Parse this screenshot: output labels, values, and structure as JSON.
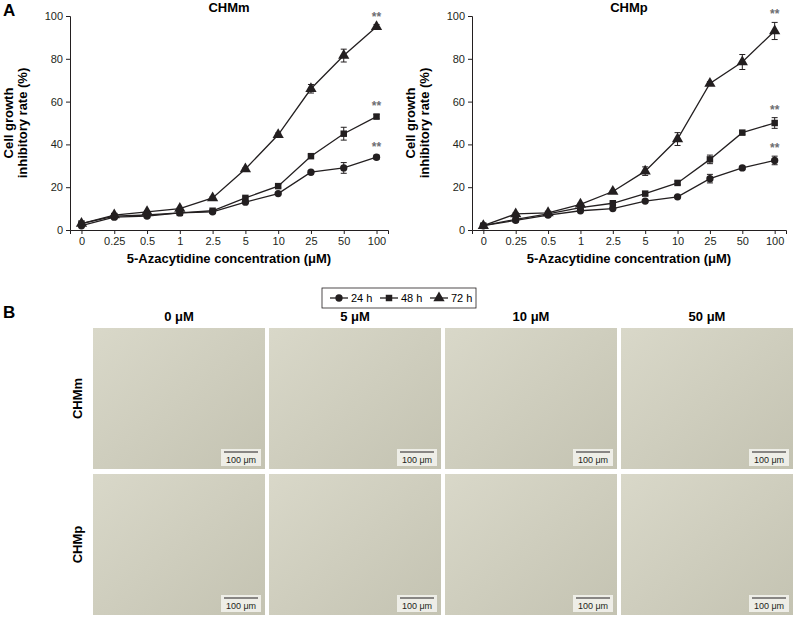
{
  "chart_data": [
    {
      "type": "line",
      "title": "CHMm",
      "x_label": "5-Azacytidine concentration (μM)",
      "y_label": "Cell growth\ninhibitory rate (%)",
      "categories": [
        "0",
        "0.25",
        "0.5",
        "1",
        "2.5",
        "5",
        "10",
        "25",
        "50",
        "100"
      ],
      "ylim": [
        0,
        100
      ],
      "yticks": [
        0,
        20,
        40,
        60,
        80,
        100
      ],
      "series": [
        {
          "name": "24 h",
          "color": "#231f20",
          "marker": "circle",
          "line_style": "solid",
          "values": [
            2,
            6,
            6.5,
            8,
            8.5,
            13,
            17,
            27,
            29,
            34
          ],
          "errors": [
            0.5,
            0.5,
            0.5,
            0.5,
            0.5,
            0.5,
            0.5,
            0.8,
            2.5,
            1
          ]
        },
        {
          "name": "48 h",
          "color": "#231f20",
          "marker": "square",
          "line_style": "solid",
          "values": [
            3,
            6.5,
            7,
            8,
            9,
            15,
            20.5,
            34.5,
            45,
            53
          ],
          "errors": [
            0.5,
            0.5,
            0.5,
            0.5,
            0.5,
            0.5,
            0.8,
            0.8,
            3,
            1
          ]
        },
        {
          "name": "72 h",
          "color": "#231f20",
          "marker": "triangle",
          "line_style": "solid",
          "values": [
            3,
            7,
            8.5,
            10,
            15,
            28.5,
            44.5,
            66,
            81.5,
            95
          ],
          "errors": [
            0.5,
            0.5,
            0.5,
            0.5,
            0.5,
            0.5,
            0.8,
            2,
            3,
            1
          ]
        }
      ],
      "annotations": [
        {
          "text": "**",
          "x": "100",
          "series": "24 h"
        },
        {
          "text": "**",
          "x": "100",
          "series": "48 h"
        },
        {
          "text": "**",
          "x": "100",
          "series": "72 h"
        }
      ]
    },
    {
      "type": "line",
      "title": "CHMp",
      "x_label": "5-Azacytidine concentration (μM)",
      "y_label": "Cell growth\ninhibitory rate (%)",
      "categories": [
        "0",
        "0.25",
        "0.5",
        "1",
        "2.5",
        "5",
        "10",
        "25",
        "50",
        "100"
      ],
      "ylim": [
        0,
        100
      ],
      "yticks": [
        0,
        20,
        40,
        60,
        80,
        100
      ],
      "series": [
        {
          "name": "24 h",
          "color": "#231f20",
          "marker": "circle",
          "line_style": "solid",
          "values": [
            2,
            4.5,
            7,
            9,
            10,
            13.5,
            15.5,
            24,
            29,
            32.5
          ],
          "errors": [
            0.5,
            0.5,
            0.5,
            0.5,
            0.5,
            0.5,
            0.5,
            2,
            0.8,
            2
          ]
        },
        {
          "name": "48 h",
          "color": "#231f20",
          "marker": "square",
          "line_style": "solid",
          "values": [
            2,
            5,
            7.5,
            10.5,
            12.5,
            17,
            22,
            33,
            45.5,
            50
          ],
          "errors": [
            0.5,
            0.5,
            0.5,
            0.5,
            0.5,
            0.8,
            0.8,
            2,
            0.8,
            2.5
          ]
        },
        {
          "name": "72 h",
          "color": "#231f20",
          "marker": "triangle",
          "line_style": "solid",
          "values": [
            2,
            7.5,
            8,
            12,
            18,
            27.5,
            42.5,
            68.5,
            78.5,
            93
          ],
          "errors": [
            0.5,
            0.5,
            0.5,
            0.5,
            0.5,
            2,
            3,
            0.8,
            3.5,
            4
          ]
        }
      ],
      "annotations": [
        {
          "text": "**",
          "x": "100",
          "series": "24 h"
        },
        {
          "text": "**",
          "x": "100",
          "series": "48 h"
        },
        {
          "text": "**",
          "x": "100",
          "series": "72 h"
        }
      ]
    }
  ],
  "figure": {
    "panel_labels": [
      "A",
      "B"
    ],
    "images": {
      "columns": [
        "0 μM",
        "5 μM",
        "10 μM",
        "50 μM"
      ],
      "rows": [
        "CHMm",
        "CHMp"
      ],
      "scale_bar": "100 μm"
    }
  }
}
